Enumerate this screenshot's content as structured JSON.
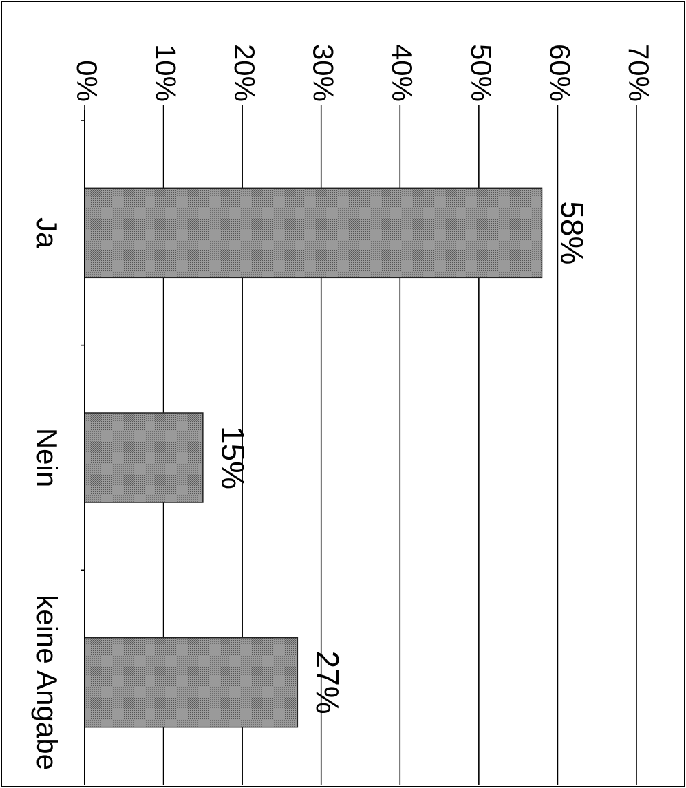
{
  "chart_data": {
    "type": "bar",
    "orientation": "horizontal",
    "title": "",
    "xlabel": "",
    "ylabel": "",
    "categories": [
      "Ja",
      "Nein",
      "keine Angabe"
    ],
    "values": [
      58,
      15,
      27
    ],
    "value_labels": [
      "58%",
      "15%",
      "27%"
    ],
    "xlim": [
      0,
      70
    ],
    "ticks": [
      0,
      10,
      20,
      30,
      40,
      50,
      60,
      70
    ],
    "tick_labels": [
      "0%",
      "10%",
      "20%",
      "30%",
      "40%",
      "50%",
      "60%",
      "70%"
    ],
    "grid": true,
    "legend": "none",
    "bar_color": "#8c8c8c",
    "rotated": "figure rotated 90 degrees clockwise"
  }
}
